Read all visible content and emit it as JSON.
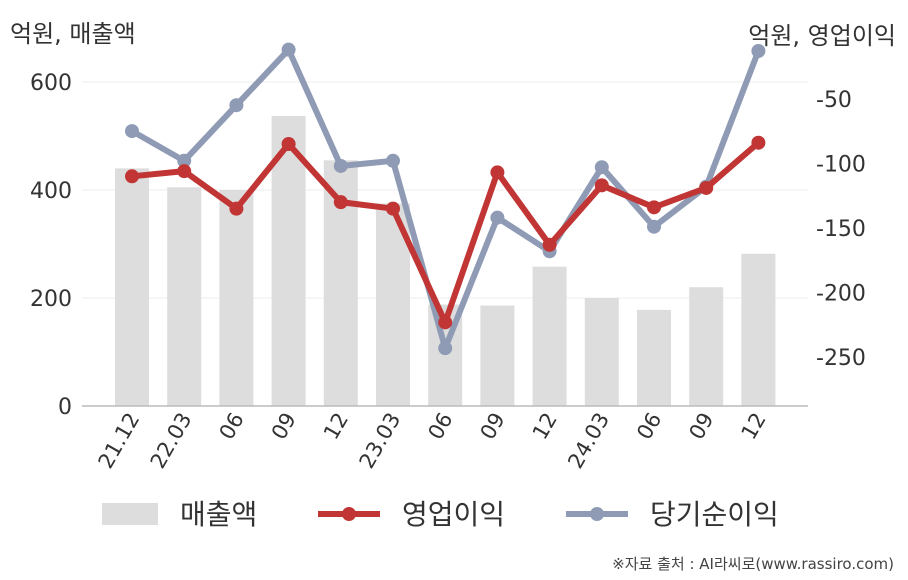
{
  "chart_data": {
    "type": "bar+line",
    "left_axis_unit": "억원, 매출액",
    "right_axis_unit": "억원, 영업이익",
    "categories": [
      "21.12",
      "22.03",
      "06",
      "09",
      "12",
      "23.03",
      "06",
      "09",
      "12",
      "24.03",
      "06",
      "09",
      "12"
    ],
    "series": [
      {
        "name": "매출액",
        "type": "bar",
        "axis": "left",
        "color": "#dddddd",
        "values": [
          440,
          405,
          400,
          537,
          455,
          375,
          188,
          186,
          258,
          200,
          178,
          220,
          282
        ]
      },
      {
        "name": "영업이익",
        "type": "line",
        "axis": "right",
        "color": "#c13535",
        "values": [
          -110,
          -106,
          -135,
          -85,
          -130,
          -135,
          -223,
          -107,
          -163,
          -117,
          -134,
          -119,
          -84
        ]
      },
      {
        "name": "당기순이익",
        "type": "line",
        "axis": "right",
        "color": "#8f9bb5",
        "values": [
          -75,
          -98,
          -55,
          -12,
          -102,
          -98,
          -243,
          -142,
          -168,
          -103,
          -149,
          -118,
          -13
        ]
      }
    ],
    "y_left": {
      "min": 0,
      "max": 600,
      "ticks": [
        0,
        200,
        400,
        600
      ]
    },
    "y_right": {
      "min": -280,
      "max": -20,
      "ticks": [
        -250,
        -200,
        -150,
        -100,
        -50
      ]
    },
    "grid": true,
    "legend_position": "bottom"
  },
  "source_note": "※자료 출처 : AI라씨로(www.rassiro.com)"
}
